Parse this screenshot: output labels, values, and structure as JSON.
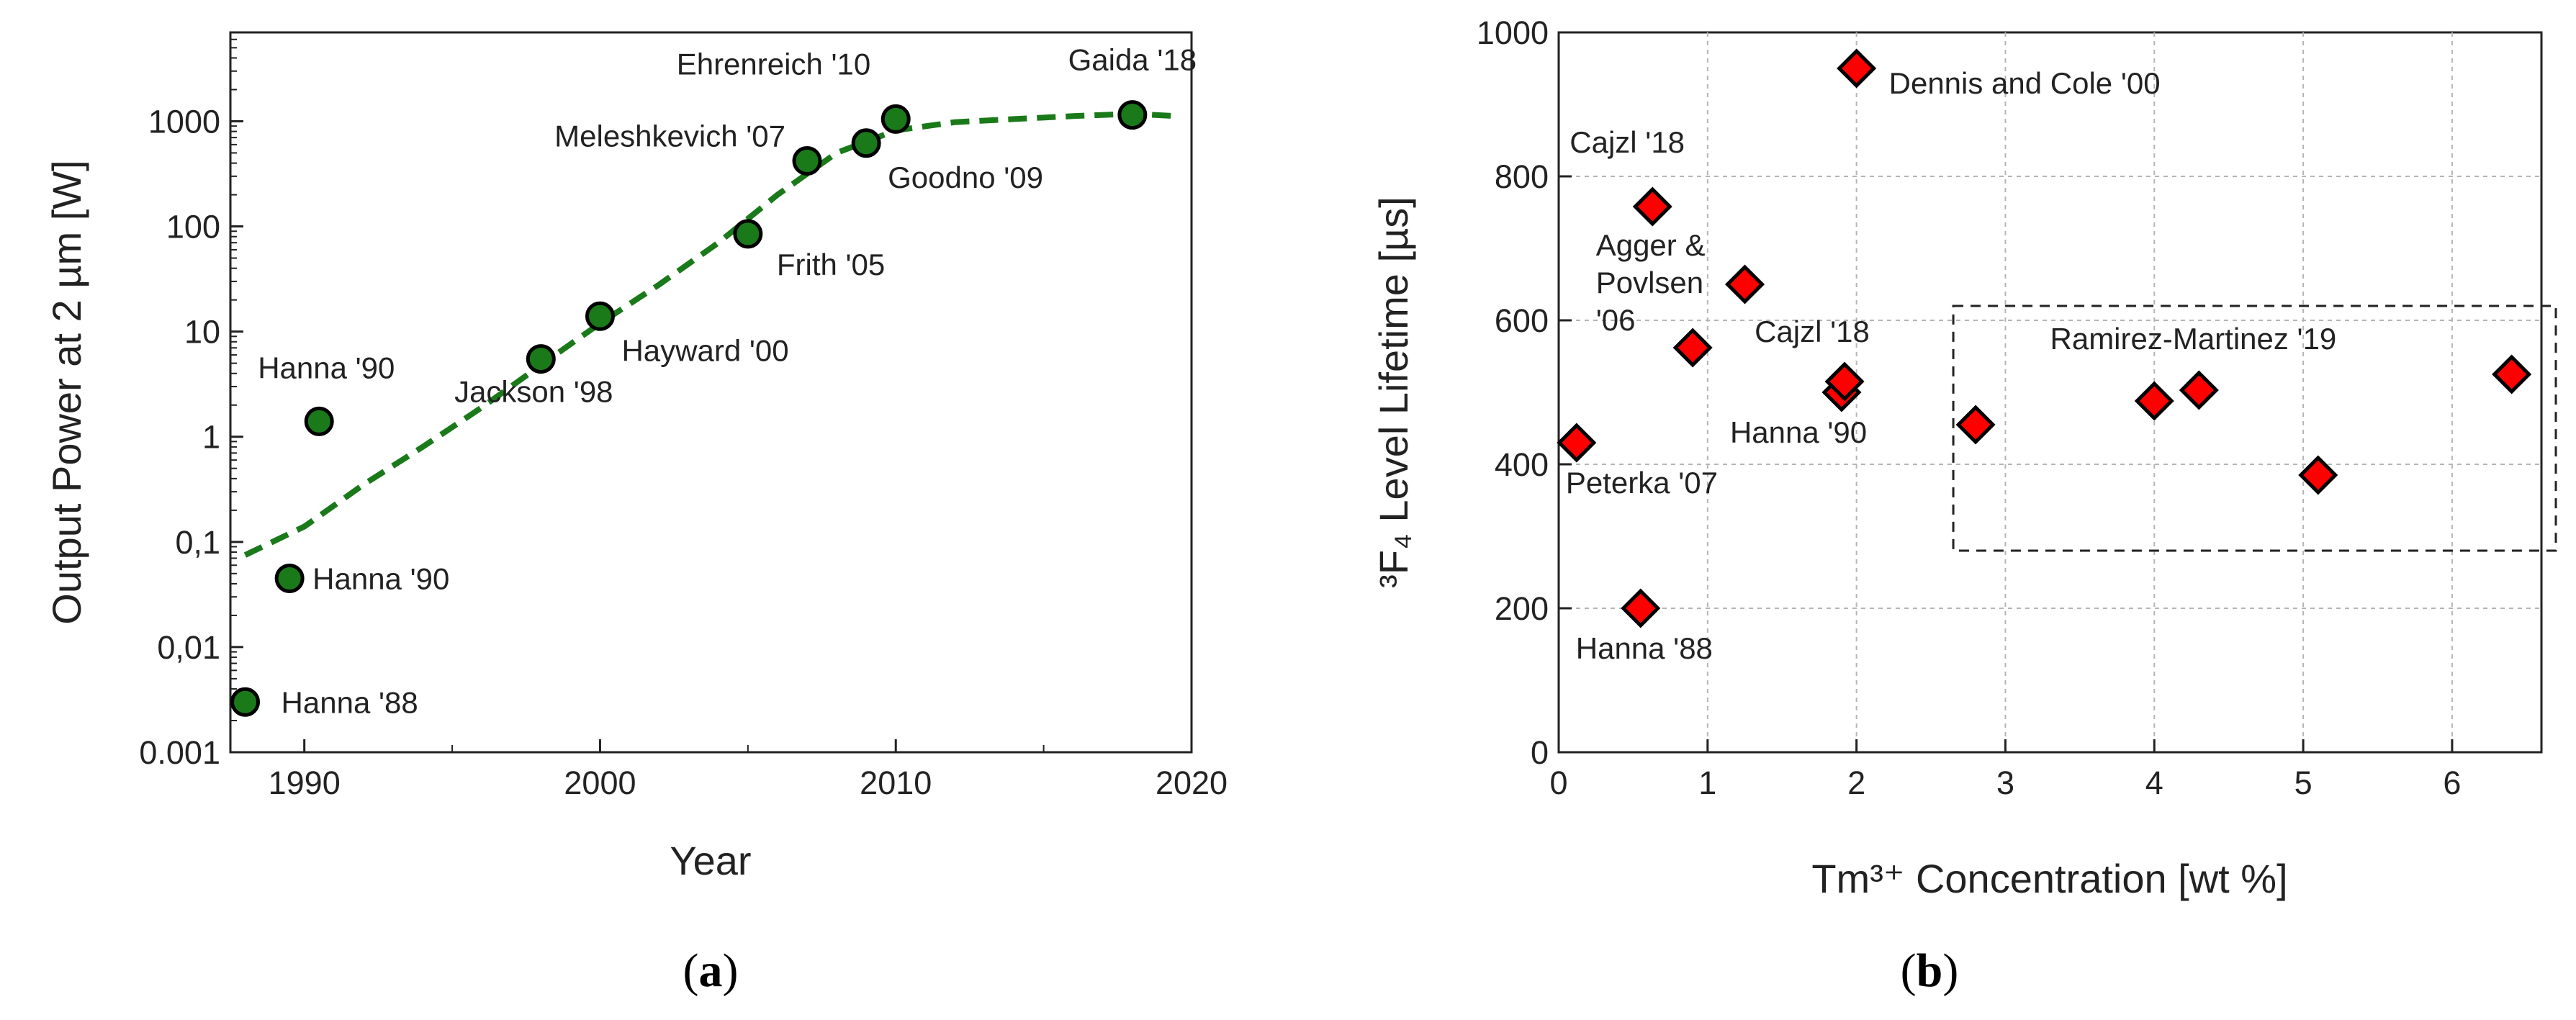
{
  "chart_data": [
    {
      "type": "scatter",
      "panel_label": "a",
      "xlabel": "Year",
      "ylabel": "Output Power at 2 µm [W]",
      "yscale": "log",
      "xlim": [
        1987.5,
        2020
      ],
      "ylim": [
        0.001,
        7000
      ],
      "grid": false,
      "xticks": [
        {
          "v": 1990,
          "label": "1990"
        },
        {
          "v": 2000,
          "label": "2000"
        },
        {
          "v": 2010,
          "label": "2010"
        },
        {
          "v": 2020,
          "label": "2020"
        }
      ],
      "yticks": [
        {
          "v": 0.001,
          "label": "0.001"
        },
        {
          "v": 0.01,
          "label": "0,01"
        },
        {
          "v": 0.1,
          "label": "0,1"
        },
        {
          "v": 1,
          "label": "1"
        },
        {
          "v": 10,
          "label": "10"
        },
        {
          "v": 100,
          "label": "100"
        },
        {
          "v": 1000,
          "label": "1000"
        }
      ],
      "marker_color": "#1a7a1a",
      "points": [
        {
          "x": 1988.0,
          "y": 0.003,
          "label": "Hanna '88"
        },
        {
          "x": 1989.5,
          "y": 0.045,
          "label": "Hanna '90"
        },
        {
          "x": 1990.5,
          "y": 1.4,
          "label": "Hanna '90"
        },
        {
          "x": 1998.0,
          "y": 5.5,
          "label": "Jackson '98"
        },
        {
          "x": 2000.0,
          "y": 14,
          "label": "Hayward '00"
        },
        {
          "x": 2005.0,
          "y": 85,
          "label": "Frith '05"
        },
        {
          "x": 2007.0,
          "y": 420,
          "label": "Meleshkevich '07"
        },
        {
          "x": 2009.0,
          "y": 620,
          "label": "Goodno '09"
        },
        {
          "x": 2010.0,
          "y": 1050,
          "label": "Ehrenreich '10"
        },
        {
          "x": 2018.0,
          "y": 1150,
          "label": "Gaida '18"
        }
      ],
      "trend": {
        "color": "#1a7a1a",
        "style": "dashed",
        "x": [
          1988.0,
          1990,
          1992,
          1994,
          1996,
          1998,
          2000,
          2002,
          2004,
          2006,
          2008,
          2010,
          2012,
          2014,
          2016,
          2018,
          2019.5
        ],
        "y": [
          0.075,
          0.14,
          0.35,
          0.8,
          1.9,
          4.8,
          12,
          28,
          70,
          200,
          500,
          820,
          980,
          1050,
          1120,
          1180,
          1120
        ]
      }
    },
    {
      "type": "scatter",
      "panel_label": "b",
      "xlabel": "Tm³⁺ Concentration [wt %]",
      "ylabel": "³F₄ Level Lifetime [µs]",
      "xlim": [
        0,
        6.6
      ],
      "ylim": [
        0,
        1000
      ],
      "grid": true,
      "xticks": [
        {
          "v": 0,
          "label": "0"
        },
        {
          "v": 1,
          "label": "1"
        },
        {
          "v": 2,
          "label": "2"
        },
        {
          "v": 3,
          "label": "3"
        },
        {
          "v": 4,
          "label": "4"
        },
        {
          "v": 5,
          "label": "5"
        },
        {
          "v": 6,
          "label": "6"
        }
      ],
      "yticks": [
        {
          "v": 0,
          "label": "0"
        },
        {
          "v": 200,
          "label": "200"
        },
        {
          "v": 400,
          "label": "400"
        },
        {
          "v": 600,
          "label": "600"
        },
        {
          "v": 800,
          "label": "800"
        },
        {
          "v": 1000,
          "label": "1000"
        }
      ],
      "marker_color": "#ff0000",
      "points": [
        {
          "x": 0.12,
          "y": 430,
          "label": "Peterka '07"
        },
        {
          "x": 0.55,
          "y": 200,
          "label": "Hanna '88"
        },
        {
          "x": 0.63,
          "y": 758,
          "label": "Cajzl '18"
        },
        {
          "x": 0.9,
          "y": 562,
          "label": ""
        },
        {
          "x": 1.25,
          "y": 650,
          "label": ""
        },
        {
          "x": 1.9,
          "y": 500,
          "label": "Hanna '90"
        },
        {
          "x": 1.92,
          "y": 515,
          "label": "Cajzl '18"
        },
        {
          "x": 2.0,
          "y": 950,
          "label": "Dennis and Cole '00"
        },
        {
          "x": 2.8,
          "y": 455,
          "label": ""
        },
        {
          "x": 4.0,
          "y": 488,
          "label": ""
        },
        {
          "x": 4.3,
          "y": 503,
          "label": ""
        },
        {
          "x": 5.1,
          "y": 385,
          "label": ""
        },
        {
          "x": 6.4,
          "y": 525,
          "label": ""
        }
      ],
      "annotations": [
        {
          "lines": [
            "Agger &",
            "Povlsen",
            "'06"
          ]
        },
        {
          "lines": [
            "Ramirez-Martinez '19"
          ]
        }
      ],
      "box": {
        "x0": 2.65,
        "x1": 7.05,
        "y0": 280,
        "y1": 620
      }
    }
  ]
}
